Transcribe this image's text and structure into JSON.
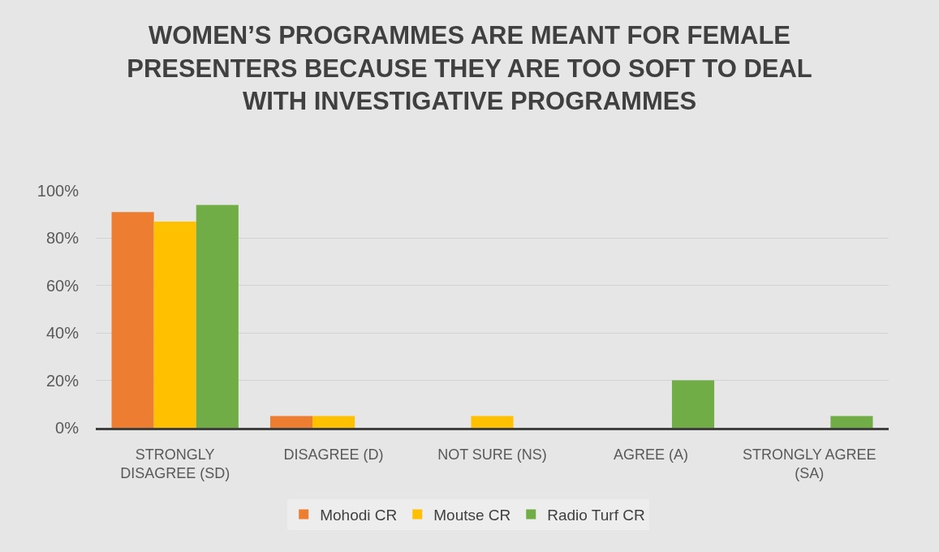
{
  "chart_data": {
    "type": "bar",
    "title": "WOMEN’S PROGRAMMES ARE MEANT FOR FEMALE PRESENTERS BECAUSE THEY ARE TOO SOFT TO DEAL WITH INVESTIGATIVE PROGRAMMES",
    "categories": [
      "STRONGLY DISAGREE (SD)",
      "DISAGREE (D)",
      "NOT SURE (NS)",
      "AGREE (A)",
      "STRONGLY AGREE (SA)"
    ],
    "series": [
      {
        "name": "Mohodi CR",
        "color": "#ed7d31",
        "values": [
          91,
          5,
          0,
          0,
          0
        ]
      },
      {
        "name": "Moutse CR",
        "color": "#ffc000",
        "values": [
          87,
          5,
          5,
          0,
          0
        ]
      },
      {
        "name": "Radio Turf CR",
        "color": "#70ad47",
        "values": [
          94,
          0,
          0,
          20,
          5
        ]
      }
    ],
    "ylim": [
      0,
      100
    ],
    "yticks": [
      {
        "value": 0,
        "label": "0%"
      },
      {
        "value": 20,
        "label": "20%"
      },
      {
        "value": 40,
        "label": "40%"
      },
      {
        "value": 60,
        "label": "60%"
      },
      {
        "value": 80,
        "label": "80%"
      },
      {
        "value": 100,
        "label": "100%"
      }
    ],
    "grid": "y",
    "legend": "bottom"
  }
}
